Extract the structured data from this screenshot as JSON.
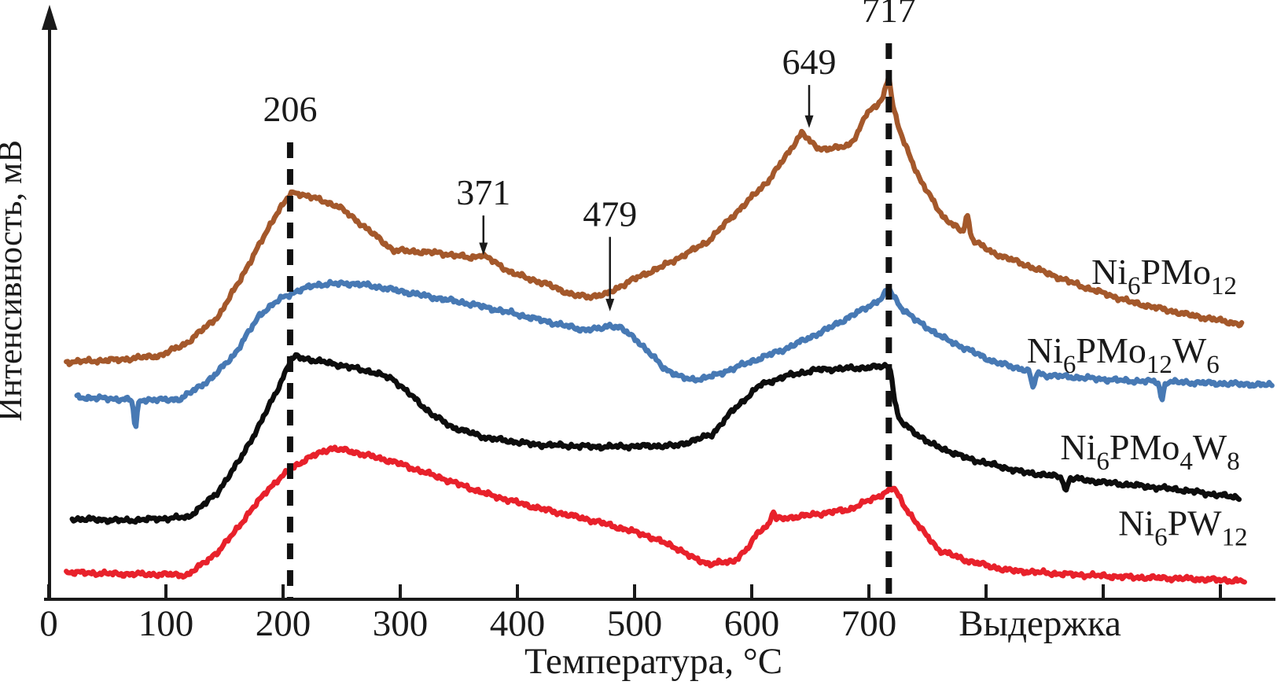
{
  "figure": {
    "background": "#ffffff",
    "axis_color": "#1a1a1a",
    "y_axis_label": "Интенсивность, мВ",
    "x_axis_label": "Температура, °C",
    "hold_label": "Выдержка"
  },
  "chart_data": {
    "type": "line",
    "title": "",
    "xlabel": "Температура, °C",
    "ylabel": "Интенсивность, мВ",
    "grid": false,
    "legend_position": "right-inline-labels",
    "x_axis": {
      "tick_values": [
        0,
        100,
        200,
        300,
        400,
        500,
        600,
        700
      ],
      "tick_labels": [
        "0",
        "100",
        "200",
        "300",
        "400",
        "500",
        "600",
        "700"
      ],
      "extra_unlabeled_ticks": [
        800,
        900,
        1000
      ],
      "hold_region_label": "Выдержка",
      "hold_label_x": 846,
      "note": "axis positions greater than 700 correspond to the isothermal hold (Выдержка) region"
    },
    "ylim": [
      0,
      110
    ],
    "y_units": "arbitrary intensity, мВ (curves vertically offset)",
    "dashed_guides": [
      {
        "x": 206,
        "label": "206",
        "top": 83
      },
      {
        "x": 717,
        "label": "717",
        "top": 101
      }
    ],
    "annotations": [
      {
        "label": "371",
        "x": 371,
        "text_y": 74.0,
        "tip_y": 62.5,
        "series": "Ni6PMo12"
      },
      {
        "label": "479",
        "x": 479,
        "text_y": 70.1,
        "tip_y": 52.3,
        "series": "Ni6PMo12W6"
      },
      {
        "label": "649",
        "x": 649,
        "text_y": 97.7,
        "tip_y": 85.6,
        "series": "Ni6PMo12"
      }
    ],
    "series": [
      {
        "name": "Ni6PMo12",
        "label_parts": [
          [
            "Ni",
            false
          ],
          [
            "6",
            true
          ],
          [
            "PMo",
            false
          ],
          [
            "12",
            true
          ]
        ],
        "color": "#a4582b",
        "noise_seed": 1,
        "label_anchor": [
          952,
          59.6
        ],
        "peaks_marked": [
          206,
          371,
          649,
          717
        ],
        "points": [
          [
            15,
            43.1
          ],
          [
            60,
            43.5
          ],
          [
            96,
            44.3
          ],
          [
            119,
            46.7
          ],
          [
            146,
            51.7
          ],
          [
            173,
            61.7
          ],
          [
            193,
            69.6
          ],
          [
            206,
            73.5
          ],
          [
            210,
            73.9
          ],
          [
            222,
            73.2
          ],
          [
            247,
            71.4
          ],
          [
            267,
            68.1
          ],
          [
            294,
            63.4
          ],
          [
            334,
            62.9
          ],
          [
            360,
            62.0
          ],
          [
            369,
            62.6
          ],
          [
            378,
            61.6
          ],
          [
            395,
            59.3
          ],
          [
            428,
            57.0
          ],
          [
            448,
            55.2
          ],
          [
            462,
            55.0
          ],
          [
            476,
            55.4
          ],
          [
            495,
            57.7
          ],
          [
            529,
            61.0
          ],
          [
            562,
            64.9
          ],
          [
            589,
            70.7
          ],
          [
            614,
            76.0
          ],
          [
            630,
            80.7
          ],
          [
            643,
            84.9
          ],
          [
            650,
            83.0
          ],
          [
            658,
            81.8
          ],
          [
            672,
            82.0
          ],
          [
            682,
            82.3
          ],
          [
            690,
            84.5
          ],
          [
            697,
            87.9
          ],
          [
            706,
            89.6
          ],
          [
            712,
            91.2
          ],
          [
            717,
            95.2
          ],
          [
            720,
            90.2
          ],
          [
            724,
            86.5
          ],
          [
            729,
            83.6
          ],
          [
            744,
            76.0
          ],
          [
            764,
            69.3
          ],
          [
            784,
            66.0
          ],
          [
            804,
            63.1
          ],
          [
            844,
            59.9
          ],
          [
            881,
            56.9
          ],
          [
            925,
            53.9
          ],
          [
            972,
            51.7
          ],
          [
            1019,
            49.9
          ]
        ],
        "spikes": [
          {
            "x": 784,
            "du": 3.6,
            "w": 2.5
          }
        ]
      },
      {
        "name": "Ni6PMo12W6",
        "label_parts": [
          [
            "Ni",
            false
          ],
          [
            "6",
            true
          ],
          [
            "PMo",
            false
          ],
          [
            "12",
            true
          ],
          [
            "W",
            false
          ],
          [
            "6",
            true
          ]
        ],
        "color": "#4779b4",
        "noise_seed": 2,
        "label_anchor": [
          917,
          45.3
        ],
        "peaks_marked": [
          206,
          479,
          717
        ],
        "points": [
          [
            24,
            36.7
          ],
          [
            66,
            36.3
          ],
          [
            95,
            36.2
          ],
          [
            113,
            36.4
          ],
          [
            140,
            40.3
          ],
          [
            160,
            44.9
          ],
          [
            180,
            51.7
          ],
          [
            200,
            54.9
          ],
          [
            209,
            55.7
          ],
          [
            227,
            57.1
          ],
          [
            254,
            57.4
          ],
          [
            274,
            57.0
          ],
          [
            307,
            55.7
          ],
          [
            334,
            54.6
          ],
          [
            361,
            53.6
          ],
          [
            395,
            52.0
          ],
          [
            428,
            50.3
          ],
          [
            455,
            49.0
          ],
          [
            470,
            49.1
          ],
          [
            479,
            49.8
          ],
          [
            488,
            49.3
          ],
          [
            502,
            47.1
          ],
          [
            525,
            42.0
          ],
          [
            540,
            40.3
          ],
          [
            549,
            39.9
          ],
          [
            560,
            40.2
          ],
          [
            569,
            40.7
          ],
          [
            596,
            42.9
          ],
          [
            630,
            45.6
          ],
          [
            663,
            48.9
          ],
          [
            693,
            52.4
          ],
          [
            710,
            54.5
          ],
          [
            717,
            56.4
          ],
          [
            722,
            54.8
          ],
          [
            727,
            53.1
          ],
          [
            740,
            50.7
          ],
          [
            764,
            47.4
          ],
          [
            807,
            43.1
          ],
          [
            851,
            40.7
          ],
          [
            918,
            39.7
          ],
          [
            985,
            39.3
          ],
          [
            1045,
            38.9
          ]
        ],
        "spikes": [
          {
            "x": 74,
            "du": -5.0,
            "w": 2.0
          },
          {
            "x": 840,
            "du": -3.0,
            "w": 2.0
          },
          {
            "x": 950,
            "du": -3.2,
            "w": 2.0
          }
        ]
      },
      {
        "name": "Ni6PMo4W8",
        "label_parts": [
          [
            "Ni",
            false
          ],
          [
            "6",
            true
          ],
          [
            "PMo",
            false
          ],
          [
            "4",
            true
          ],
          [
            "W",
            false
          ],
          [
            "8",
            true
          ]
        ],
        "color": "#0d0d0d",
        "noise_seed": 3,
        "label_anchor": [
          940,
          27.7
        ],
        "peaks_marked": [
          206,
          717
        ],
        "points": [
          [
            20,
            14.6
          ],
          [
            66,
            14.3
          ],
          [
            100,
            14.7
          ],
          [
            119,
            14.9
          ],
          [
            143,
            19.1
          ],
          [
            163,
            25.3
          ],
          [
            180,
            31.7
          ],
          [
            197,
            38.9
          ],
          [
            206,
            43.3
          ],
          [
            211,
            44.1
          ],
          [
            226,
            43.4
          ],
          [
            240,
            42.9
          ],
          [
            274,
            41.4
          ],
          [
            294,
            40.0
          ],
          [
            311,
            36.7
          ],
          [
            327,
            33.6
          ],
          [
            344,
            31.3
          ],
          [
            374,
            29.3
          ],
          [
            415,
            28.1
          ],
          [
            468,
            27.7
          ],
          [
            536,
            27.9
          ],
          [
            566,
            29.9
          ],
          [
            583,
            34.1
          ],
          [
            607,
            38.9
          ],
          [
            630,
            40.6
          ],
          [
            656,
            41.7
          ],
          [
            690,
            42.0
          ],
          [
            706,
            42.2
          ],
          [
            716,
            42.4
          ],
          [
            719,
            41.5
          ],
          [
            722,
            36.0
          ],
          [
            726,
            32.5
          ],
          [
            737,
            30.6
          ],
          [
            754,
            28.1
          ],
          [
            784,
            25.6
          ],
          [
            831,
            23.1
          ],
          [
            898,
            21.3
          ],
          [
            965,
            19.9
          ],
          [
            1017,
            18.4
          ]
        ],
        "spikes": [
          {
            "x": 868,
            "du": -2.5,
            "w": 2.0
          }
        ]
      },
      {
        "name": "Ni6PW12",
        "label_parts": [
          [
            "Ni",
            false
          ],
          [
            "6",
            true
          ],
          [
            "PW",
            false
          ],
          [
            "12",
            true
          ]
        ],
        "color": "#e8212b",
        "noise_seed": 4,
        "label_anchor": [
          968,
          13.9
        ],
        "peaks_marked": [
          206,
          717
        ],
        "points": [
          [
            15,
            4.9
          ],
          [
            60,
            4.6
          ],
          [
            100,
            4.5
          ],
          [
            119,
            4.4
          ],
          [
            146,
            8.9
          ],
          [
            166,
            14.3
          ],
          [
            187,
            20.0
          ],
          [
            209,
            24.1
          ],
          [
            225,
            26.0
          ],
          [
            240,
            27.4
          ],
          [
            255,
            27.0
          ],
          [
            267,
            26.4
          ],
          [
            294,
            25.0
          ],
          [
            334,
            22.1
          ],
          [
            374,
            19.1
          ],
          [
            415,
            16.7
          ],
          [
            468,
            14.1
          ],
          [
            509,
            11.7
          ],
          [
            536,
            9.3
          ],
          [
            550,
            7.5
          ],
          [
            564,
            6.4
          ],
          [
            584,
            6.9
          ],
          [
            596,
            9.0
          ],
          [
            606,
            12.4
          ],
          [
            623,
            14.6
          ],
          [
            650,
            15.3
          ],
          [
            683,
            16.3
          ],
          [
            710,
            18.9
          ],
          [
            718,
            19.9
          ],
          [
            721,
            20.3
          ],
          [
            726,
            18.5
          ],
          [
            731,
            16.7
          ],
          [
            744,
            12.9
          ],
          [
            760,
            8.9
          ],
          [
            784,
            7.0
          ],
          [
            817,
            5.3
          ],
          [
            864,
            4.6
          ],
          [
            924,
            4.0
          ],
          [
            978,
            3.7
          ],
          [
            1021,
            3.3
          ]
        ],
        "spikes": [
          {
            "x": 618,
            "du": 2.0,
            "w": 2.0
          }
        ]
      }
    ]
  }
}
